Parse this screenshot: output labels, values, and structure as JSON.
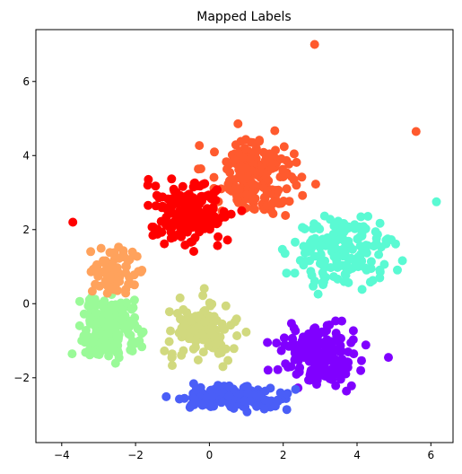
{
  "chart_data": {
    "type": "scatter",
    "title": "Mapped Labels",
    "xlabel": "",
    "ylabel": "",
    "xlim": [
      -4.7,
      6.6
    ],
    "ylim": [
      -3.75,
      7.4
    ],
    "xticks": [
      -4,
      -2,
      0,
      2,
      4,
      6
    ],
    "yticks": [
      -2,
      0,
      2,
      4,
      6
    ],
    "xtick_labels": [
      "−4",
      "−2",
      "0",
      "2",
      "4",
      "6"
    ],
    "ytick_labels": [
      "−2",
      "0",
      "2",
      "4",
      "6"
    ],
    "grid": false,
    "legend": null,
    "colormap": "rainbow",
    "clusters": [
      {
        "color": "#8000ff",
        "center": [
          3.0,
          -1.4
        ],
        "spread": [
          1.0,
          0.7
        ],
        "count": 170
      },
      {
        "color": "#4a5ef7",
        "center": [
          0.6,
          -2.55
        ],
        "spread": [
          1.3,
          0.28
        ],
        "count": 150
      },
      {
        "color": "#5afad3",
        "center": [
          3.6,
          1.4
        ],
        "spread": [
          1.2,
          0.9
        ],
        "count": 170
      },
      {
        "color": "#9afa98",
        "center": [
          -2.7,
          -0.7
        ],
        "spread": [
          0.75,
          0.9
        ],
        "count": 160
      },
      {
        "color": "#d1d97e",
        "center": [
          -0.2,
          -0.7
        ],
        "spread": [
          0.85,
          0.7
        ],
        "count": 140
      },
      {
        "color": "#ffa25c",
        "center": [
          -2.5,
          0.9
        ],
        "spread": [
          0.6,
          0.55
        ],
        "count": 70
      },
      {
        "color": "#ff5a2e",
        "center": [
          1.2,
          3.4
        ],
        "spread": [
          1.1,
          0.95
        ],
        "count": 190
      },
      {
        "color": "#ff0000",
        "center": [
          -0.6,
          2.5
        ],
        "spread": [
          1.0,
          0.8
        ],
        "count": 170
      }
    ],
    "outliers": [
      {
        "x": 2.85,
        "y": 7.0,
        "color": "#ff5a2e"
      },
      {
        "x": 6.15,
        "y": 2.75,
        "color": "#5afad3"
      },
      {
        "x": -3.7,
        "y": 2.2,
        "color": "#ff0000"
      },
      {
        "x": 5.6,
        "y": 4.65,
        "color": "#ff5a2e"
      },
      {
        "x": 4.85,
        "y": -1.45,
        "color": "#8000ff"
      }
    ]
  }
}
